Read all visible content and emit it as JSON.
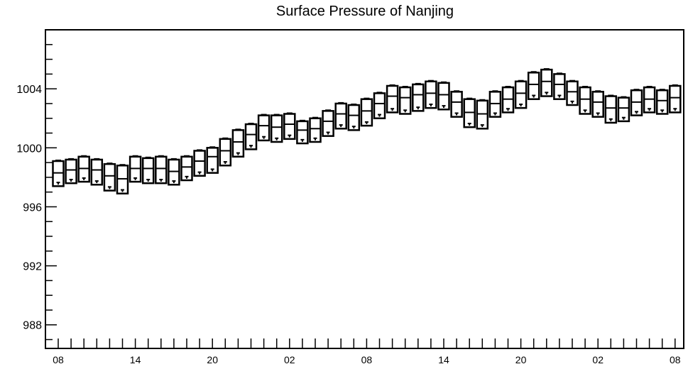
{
  "chart_data": {
    "type": "box",
    "title": "Surface Pressure of Nanjing",
    "xlabel": "",
    "ylabel": "",
    "ylim": [
      986.4,
      1008.0
    ],
    "yticks": [
      988,
      992,
      996,
      1000,
      1004
    ],
    "ytick_labels": [
      "988",
      "992",
      "996",
      "1000",
      "1004"
    ],
    "xtick_labels": [
      "08",
      "14",
      "20",
      "02",
      "08",
      "14",
      "20",
      "02",
      "08"
    ],
    "xtick_label_steps": [
      0,
      6,
      12,
      18,
      24,
      30,
      36,
      42,
      48
    ],
    "steps_per_hour": 1,
    "grid": false,
    "series": [
      {
        "q25": [
          997.4,
          997.6,
          997.7,
          997.5,
          997.1,
          996.9,
          997.7,
          997.6,
          997.6,
          997.5,
          997.8,
          998.1,
          998.3,
          998.8,
          999.4,
          999.9,
          1000.5,
          1000.4,
          1000.6,
          1000.3,
          1000.4,
          1000.8,
          1001.3,
          1001.2,
          1001.5,
          1002.0,
          1002.4,
          1002.3,
          1002.5,
          1002.7,
          1002.6,
          1002.1,
          1001.4,
          1001.3,
          1002.1,
          1002.4,
          1002.7,
          1003.3,
          1003.5,
          1003.3,
          1002.9,
          1002.3,
          1002.1,
          1001.7,
          1001.8,
          1002.2,
          1002.4,
          1002.3,
          1002.4
        ],
        "median": [
          998.3,
          998.5,
          998.6,
          998.5,
          998.1,
          997.9,
          998.6,
          998.6,
          998.6,
          998.4,
          998.7,
          999.1,
          999.4,
          999.8,
          1000.4,
          1000.9,
          1001.5,
          1001.4,
          1001.6,
          1001.2,
          1001.3,
          1001.8,
          1002.3,
          1002.2,
          1002.5,
          1003.0,
          1003.5,
          1003.4,
          1003.6,
          1003.7,
          1003.6,
          1003.1,
          1002.4,
          1002.3,
          1003.0,
          1003.3,
          1003.7,
          1004.3,
          1004.5,
          1004.3,
          1003.8,
          1003.3,
          1003.1,
          1002.7,
          1002.7,
          1003.1,
          1003.3,
          1003.2,
          1003.4
        ],
        "q75": [
          999.1,
          999.2,
          999.4,
          999.2,
          998.9,
          998.8,
          999.4,
          999.3,
          999.4,
          999.2,
          999.4,
          999.8,
          1000.0,
          1000.6,
          1001.2,
          1001.6,
          1002.2,
          1002.2,
          1002.3,
          1001.8,
          1002.0,
          1002.5,
          1003.0,
          1002.9,
          1003.3,
          1003.7,
          1004.2,
          1004.1,
          1004.3,
          1004.5,
          1004.4,
          1003.8,
          1003.3,
          1003.2,
          1003.8,
          1004.1,
          1004.5,
          1005.1,
          1005.3,
          1005.0,
          1004.5,
          1004.1,
          1003.8,
          1003.5,
          1003.4,
          1003.9,
          1004.1,
          1003.9,
          1004.2
        ],
        "whisker_high": [
          999.15,
          999.25,
          999.45,
          999.25,
          998.95,
          998.85,
          999.45,
          999.35,
          999.45,
          999.25,
          999.45,
          999.85,
          1000.05,
          1000.65,
          1001.25,
          1001.65,
          1002.25,
          1002.25,
          1002.35,
          1001.85,
          1002.05,
          1002.55,
          1003.05,
          1002.95,
          1003.35,
          1003.75,
          1004.25,
          1004.15,
          1004.35,
          1004.55,
          1004.45,
          1003.85,
          1003.35,
          1003.25,
          1003.85,
          1004.15,
          1004.55,
          1005.15,
          1005.35,
          1005.05,
          1004.55,
          1004.15,
          1003.85,
          1003.55,
          1003.45,
          1003.95,
          1004.15,
          1003.95,
          1004.25
        ],
        "whisker_low": [
          997.65,
          997.85,
          997.95,
          997.75,
          997.35,
          997.15,
          997.95,
          997.85,
          997.85,
          997.75,
          998.05,
          998.35,
          998.55,
          999.05,
          999.65,
          1000.15,
          1000.75,
          1000.65,
          1000.85,
          1000.55,
          1000.65,
          1001.05,
          1001.55,
          1001.45,
          1001.75,
          1002.25,
          1002.65,
          1002.55,
          1002.75,
          1002.95,
          1002.85,
          1002.35,
          1001.65,
          1001.55,
          1002.35,
          1002.65,
          1002.95,
          1003.55,
          1003.75,
          1003.55,
          1003.15,
          1002.55,
          1002.35,
          1001.95,
          1002.05,
          1002.45,
          1002.65,
          1002.55,
          1002.65
        ]
      }
    ]
  }
}
